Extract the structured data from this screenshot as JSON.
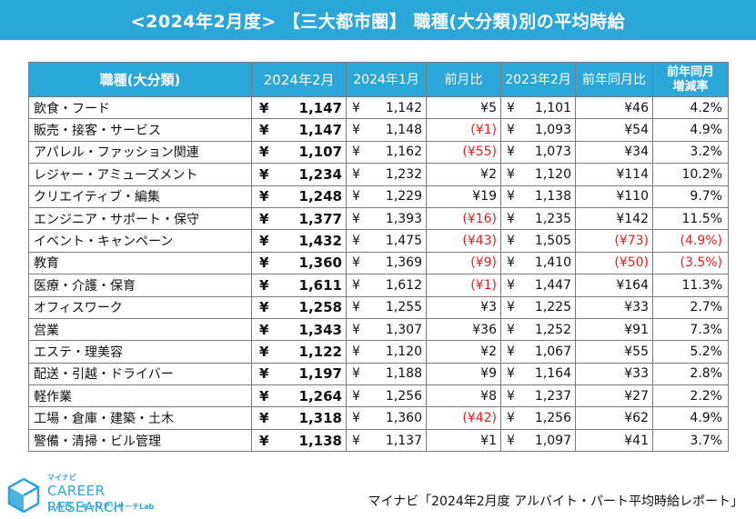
{
  "title": "<2024年2月度> 【三大都市圏】 職種(大分類)別の平均時給",
  "table": {
    "headers": {
      "category": "職種(大分類)",
      "feb2024": "2024年2月",
      "jan2024": "2024年1月",
      "mom": "前月比",
      "feb2023": "2023年2月",
      "yoy": "前年同月比",
      "yoy_rate": "前年同月 増減率"
    },
    "yen_symbol": "¥",
    "rows": [
      {
        "category": "飲食・フード",
        "feb2024": "1,147",
        "jan2024": "1,142",
        "mom": "¥5",
        "mom_neg": false,
        "feb2023": "1,101",
        "yoy": "¥46",
        "yoy_neg": false,
        "rate": "4.2%",
        "rate_neg": false
      },
      {
        "category": "販売・接客・サービス",
        "feb2024": "1,147",
        "jan2024": "1,148",
        "mom": "(¥1)",
        "mom_neg": true,
        "feb2023": "1,093",
        "yoy": "¥54",
        "yoy_neg": false,
        "rate": "4.9%",
        "rate_neg": false
      },
      {
        "category": "アパレル・ファッション関連",
        "feb2024": "1,107",
        "jan2024": "1,162",
        "mom": "(¥55)",
        "mom_neg": true,
        "feb2023": "1,073",
        "yoy": "¥34",
        "yoy_neg": false,
        "rate": "3.2%",
        "rate_neg": false
      },
      {
        "category": "レジャー・アミューズメント",
        "feb2024": "1,234",
        "jan2024": "1,232",
        "mom": "¥2",
        "mom_neg": false,
        "feb2023": "1,120",
        "yoy": "¥114",
        "yoy_neg": false,
        "rate": "10.2%",
        "rate_neg": false
      },
      {
        "category": "クリエイティブ・編集",
        "feb2024": "1,248",
        "jan2024": "1,229",
        "mom": "¥19",
        "mom_neg": false,
        "feb2023": "1,138",
        "yoy": "¥110",
        "yoy_neg": false,
        "rate": "9.7%",
        "rate_neg": false
      },
      {
        "category": "エンジニア・サポート・保守",
        "feb2024": "1,377",
        "jan2024": "1,393",
        "mom": "(¥16)",
        "mom_neg": true,
        "feb2023": "1,235",
        "yoy": "¥142",
        "yoy_neg": false,
        "rate": "11.5%",
        "rate_neg": false
      },
      {
        "category": "イベント・キャンペーン",
        "feb2024": "1,432",
        "jan2024": "1,475",
        "mom": "(¥43)",
        "mom_neg": true,
        "feb2023": "1,505",
        "yoy": "(¥73)",
        "yoy_neg": true,
        "rate": "(4.9%)",
        "rate_neg": true
      },
      {
        "category": "教育",
        "feb2024": "1,360",
        "jan2024": "1,369",
        "mom": "(¥9)",
        "mom_neg": true,
        "feb2023": "1,410",
        "yoy": "(¥50)",
        "yoy_neg": true,
        "rate": "(3.5%)",
        "rate_neg": true
      },
      {
        "category": "医療・介護・保育",
        "feb2024": "1,611",
        "jan2024": "1,612",
        "mom": "(¥1)",
        "mom_neg": true,
        "feb2023": "1,447",
        "yoy": "¥164",
        "yoy_neg": false,
        "rate": "11.3%",
        "rate_neg": false
      },
      {
        "category": "オフィスワーク",
        "feb2024": "1,258",
        "jan2024": "1,255",
        "mom": "¥3",
        "mom_neg": false,
        "feb2023": "1,225",
        "yoy": "¥33",
        "yoy_neg": false,
        "rate": "2.7%",
        "rate_neg": false
      },
      {
        "category": "営業",
        "feb2024": "1,343",
        "jan2024": "1,307",
        "mom": "¥36",
        "mom_neg": false,
        "feb2023": "1,252",
        "yoy": "¥91",
        "yoy_neg": false,
        "rate": "7.3%",
        "rate_neg": false
      },
      {
        "category": "エステ・理美容",
        "feb2024": "1,122",
        "jan2024": "1,120",
        "mom": "¥2",
        "mom_neg": false,
        "feb2023": "1,067",
        "yoy": "¥55",
        "yoy_neg": false,
        "rate": "5.2%",
        "rate_neg": false
      },
      {
        "category": "配送・引越・ドライバー",
        "feb2024": "1,197",
        "jan2024": "1,188",
        "mom": "¥9",
        "mom_neg": false,
        "feb2023": "1,164",
        "yoy": "¥33",
        "yoy_neg": false,
        "rate": "2.8%",
        "rate_neg": false
      },
      {
        "category": "軽作業",
        "feb2024": "1,264",
        "jan2024": "1,256",
        "mom": "¥8",
        "mom_neg": false,
        "feb2023": "1,237",
        "yoy": "¥27",
        "yoy_neg": false,
        "rate": "2.2%",
        "rate_neg": false
      },
      {
        "category": "工場・倉庫・建築・土木",
        "feb2024": "1,318",
        "jan2024": "1,360",
        "mom": "(¥42)",
        "mom_neg": true,
        "feb2023": "1,256",
        "yoy": "¥62",
        "yoy_neg": false,
        "rate": "4.9%",
        "rate_neg": false
      },
      {
        "category": "警備・清掃・ビル管理",
        "feb2024": "1,138",
        "jan2024": "1,137",
        "mom": "¥1",
        "mom_neg": false,
        "feb2023": "1,097",
        "yoy": "¥41",
        "yoy_neg": false,
        "rate": "3.7%",
        "rate_neg": false
      }
    ]
  },
  "logo": {
    "small": "マイナビ",
    "main": "CAREER RESEARCH",
    "lab": "LAB",
    "sub": "キャリアリサーチLab"
  },
  "source": "マイナビ「2024年2月度 アルバイト・パート平均時給レポート」",
  "colors": {
    "header_blue": "#2aa6d9",
    "negative_red": "#e02020"
  }
}
